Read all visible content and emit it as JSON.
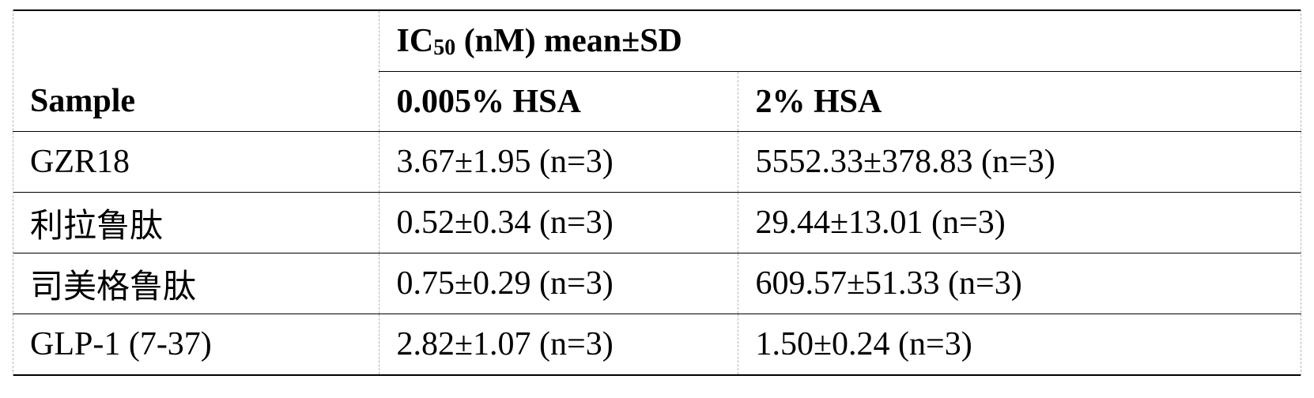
{
  "table": {
    "sample_header": "Sample",
    "group_header": {
      "prefix": "IC",
      "subscript": "50",
      "suffix": " (nM) mean±SD"
    },
    "subheaders": [
      "0.005% HSA",
      "2% HSA"
    ],
    "rows": [
      {
        "sample": "GZR18",
        "hsa_0005": "3.67±1.95 (n=3)",
        "hsa_2": "5552.33±378.83 (n=3)"
      },
      {
        "sample": "利拉鲁肽",
        "hsa_0005": "0.52±0.34 (n=3)",
        "hsa_2": "29.44±13.01 (n=3)"
      },
      {
        "sample": "司美格鲁肽",
        "hsa_0005": "0.75±0.29 (n=3)",
        "hsa_2": "609.57±51.33 (n=3)"
      },
      {
        "sample": "GLP-1 (7-37)",
        "hsa_0005": "2.82±1.07 (n=3)",
        "hsa_2": "1.50±0.24 (n=3)"
      }
    ]
  }
}
